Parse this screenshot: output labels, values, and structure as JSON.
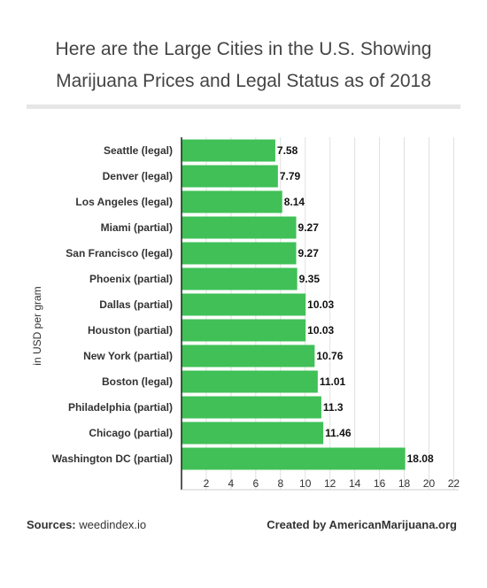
{
  "title_lines": [
    "Here are the Large Cities in the U.S. Showing",
    "Marijuana Prices and Legal Status as of 2018"
  ],
  "footer": {
    "sources_label": "Sources:",
    "sources_value": "weedindex.io",
    "created_by": "Created by AmericanMarijuana.org"
  },
  "colors": {
    "bar": "#40c057",
    "grid": "#e0e0e0",
    "axis": "#222222"
  },
  "chart_data": {
    "type": "bar",
    "orientation": "horizontal",
    "title": "Here are the Large Cities in the U.S. Showing Marijuana Prices and Legal Status as of 2018",
    "ylabel": "in USD per gram",
    "xlabel": "",
    "categories": [
      "Seattle (legal)",
      "Denver (legal)",
      "Los Angeles (legal)",
      "Miami (partial)",
      "San Francisco (legal)",
      "Phoenix (partial)",
      "Dallas (partial)",
      "Houston (partial)",
      "New York (partial)",
      "Boston (legal)",
      "Philadelphia (partial)",
      "Chicago (partial)",
      "Washington DC (partial)"
    ],
    "values": [
      7.58,
      7.79,
      8.14,
      9.27,
      9.27,
      9.35,
      10.03,
      10.03,
      10.76,
      11.01,
      11.3,
      11.46,
      18.08
    ],
    "value_labels": [
      "7.58",
      "7.79",
      "8.14",
      "9.27",
      "9.27",
      "9.35",
      "10.03",
      "10.03",
      "10.76",
      "11.01",
      "11.3",
      "11.46",
      "18.08"
    ],
    "xticks": [
      2,
      4,
      6,
      8,
      10,
      12,
      14,
      16,
      18,
      20,
      22
    ],
    "xlim": [
      0,
      22.4
    ],
    "grid": true,
    "legend": "none"
  }
}
